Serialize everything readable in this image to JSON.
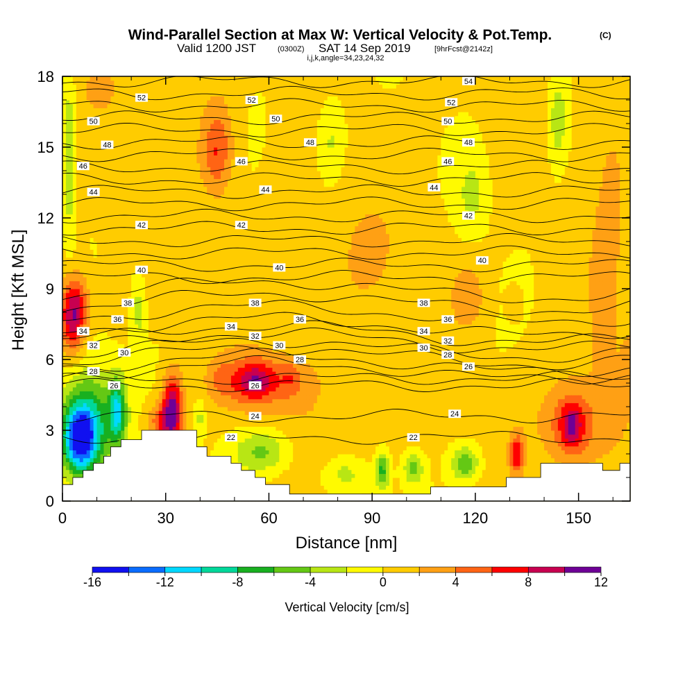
{
  "header": {
    "title": "Wind-Parallel Section at Max W: Vertical Velocity & Pot.Temp.",
    "title_mark": "(C)",
    "valid_prefix": "Valid 1200 JST",
    "valid_z": "(0300Z)",
    "valid_date": "SAT 14 Sep 2019",
    "valid_fcst": "[9hrFcst@2142z]",
    "indices": "i,j,k,angle=34,23,24,32"
  },
  "chart_data": {
    "type": "heatmap",
    "title": "Wind-Parallel Section at Max W: Vertical Velocity & Pot.Temp.",
    "xlabel": "Distance [nm]",
    "ylabel": "Height [Kft MSL]",
    "xlim": [
      0,
      165
    ],
    "ylim": [
      0,
      18
    ],
    "xticks": [
      0,
      30,
      60,
      90,
      120,
      150
    ],
    "yticks": [
      0,
      3,
      6,
      9,
      12,
      15,
      18
    ],
    "colorbar": {
      "label": "Vertical Velocity [cm/s]",
      "min": -16,
      "max": 12,
      "step": 2,
      "tick_values": [
        -16,
        -12,
        -8,
        -4,
        0,
        4,
        8,
        12
      ],
      "colors": [
        "#1010f0",
        "#0a6cff",
        "#00d8ff",
        "#00d89a",
        "#18b020",
        "#64c814",
        "#b8e614",
        "#fffa00",
        "#ffcc00",
        "#ffa014",
        "#ff6414",
        "#ff0000",
        "#c80050",
        "#6e0096"
      ]
    },
    "theta_contours": {
      "levels": [
        22,
        24,
        26,
        28,
        30,
        32,
        34,
        36,
        38,
        40,
        42,
        44,
        46,
        48,
        50,
        52,
        54
      ],
      "labels": [
        {
          "value": "22",
          "x": 49,
          "y": 2.7
        },
        {
          "value": "22",
          "x": 102,
          "y": 2.7
        },
        {
          "value": "24",
          "x": 56,
          "y": 3.6
        },
        {
          "value": "24",
          "x": 114,
          "y": 3.7
        },
        {
          "value": "26",
          "x": 15,
          "y": 4.9
        },
        {
          "value": "26",
          "x": 56,
          "y": 4.9
        },
        {
          "value": "26",
          "x": 118,
          "y": 5.7
        },
        {
          "value": "28",
          "x": 9,
          "y": 5.5
        },
        {
          "value": "28",
          "x": 69,
          "y": 6.0
        },
        {
          "value": "28",
          "x": 112,
          "y": 6.2
        },
        {
          "value": "30",
          "x": 18,
          "y": 6.3
        },
        {
          "value": "30",
          "x": 63,
          "y": 6.6
        },
        {
          "value": "30",
          "x": 105,
          "y": 6.5
        },
        {
          "value": "32",
          "x": 9,
          "y": 6.6
        },
        {
          "value": "32",
          "x": 56,
          "y": 7.0
        },
        {
          "value": "32",
          "x": 112,
          "y": 6.8
        },
        {
          "value": "34",
          "x": 6,
          "y": 7.2
        },
        {
          "value": "34",
          "x": 49,
          "y": 7.4
        },
        {
          "value": "34",
          "x": 105,
          "y": 7.2
        },
        {
          "value": "36",
          "x": 16,
          "y": 7.7
        },
        {
          "value": "36",
          "x": 69,
          "y": 7.7
        },
        {
          "value": "36",
          "x": 112,
          "y": 7.7
        },
        {
          "value": "38",
          "x": 19,
          "y": 8.4
        },
        {
          "value": "38",
          "x": 56,
          "y": 8.4
        },
        {
          "value": "38",
          "x": 105,
          "y": 8.4
        },
        {
          "value": "40",
          "x": 23,
          "y": 9.8
        },
        {
          "value": "40",
          "x": 63,
          "y": 9.9
        },
        {
          "value": "40",
          "x": 122,
          "y": 10.2
        },
        {
          "value": "42",
          "x": 23,
          "y": 11.7
        },
        {
          "value": "42",
          "x": 52,
          "y": 11.7
        },
        {
          "value": "42",
          "x": 118,
          "y": 12.1
        },
        {
          "value": "44",
          "x": 9,
          "y": 13.1
        },
        {
          "value": "44",
          "x": 59,
          "y": 13.2
        },
        {
          "value": "44",
          "x": 108,
          "y": 13.3
        },
        {
          "value": "46",
          "x": 6,
          "y": 14.2
        },
        {
          "value": "46",
          "x": 52,
          "y": 14.4
        },
        {
          "value": "46",
          "x": 112,
          "y": 14.4
        },
        {
          "value": "48",
          "x": 13,
          "y": 15.1
        },
        {
          "value": "48",
          "x": 72,
          "y": 15.2
        },
        {
          "value": "48",
          "x": 118,
          "y": 15.2
        },
        {
          "value": "50",
          "x": 9,
          "y": 16.1
        },
        {
          "value": "50",
          "x": 62,
          "y": 16.2
        },
        {
          "value": "50",
          "x": 112,
          "y": 16.1
        },
        {
          "value": "52",
          "x": 23,
          "y": 17.1
        },
        {
          "value": "52",
          "x": 55,
          "y": 17.0
        },
        {
          "value": "52",
          "x": 113,
          "y": 16.9
        },
        {
          "value": "54",
          "x": 118,
          "y": 17.8
        }
      ]
    },
    "terrain_top_kft": [
      [
        0,
        0.7
      ],
      [
        3,
        0.7
      ],
      [
        3,
        1.0
      ],
      [
        6,
        1.0
      ],
      [
        6,
        1.3
      ],
      [
        9,
        1.3
      ],
      [
        9,
        1.6
      ],
      [
        12,
        1.6
      ],
      [
        12,
        1.9
      ],
      [
        14,
        1.9
      ],
      [
        14,
        2.3
      ],
      [
        17,
        2.3
      ],
      [
        17,
        2.6
      ],
      [
        23,
        2.6
      ],
      [
        23,
        3.0
      ],
      [
        39,
        3.0
      ],
      [
        39,
        2.3
      ],
      [
        42,
        2.3
      ],
      [
        42,
        1.9
      ],
      [
        49,
        1.9
      ],
      [
        49,
        1.6
      ],
      [
        52,
        1.6
      ],
      [
        52,
        1.3
      ],
      [
        56,
        1.3
      ],
      [
        56,
        1.0
      ],
      [
        59,
        1.0
      ],
      [
        59,
        0.7
      ],
      [
        66,
        0.7
      ],
      [
        66,
        0.3
      ],
      [
        107,
        0.3
      ],
      [
        107,
        0.6
      ],
      [
        129,
        0.6
      ],
      [
        129,
        1.0
      ],
      [
        139,
        1.0
      ],
      [
        139,
        1.6
      ],
      [
        157,
        1.6
      ],
      [
        157,
        1.3
      ],
      [
        162,
        1.3
      ],
      [
        162,
        1.6
      ],
      [
        165,
        1.6
      ]
    ],
    "w_features": [
      {
        "x": 3,
        "y": 7.6,
        "sx": 3.5,
        "sy": 1.4,
        "w": 8
      },
      {
        "x": 4,
        "y": 8.6,
        "sx": 4,
        "sy": 1.2,
        "w": 4
      },
      {
        "x": 5,
        "y": 2.6,
        "sx": 5,
        "sy": 1.4,
        "w": -13
      },
      {
        "x": 8,
        "y": 3.4,
        "sx": 8,
        "sy": 2.2,
        "w": -8
      },
      {
        "x": 16,
        "y": 3.8,
        "sx": 2.5,
        "sy": 1.4,
        "w": -9
      },
      {
        "x": 32,
        "y": 4.0,
        "sx": 2.8,
        "sy": 1.5,
        "w": 10
      },
      {
        "x": 29,
        "y": 3.4,
        "sx": 4,
        "sy": 0.8,
        "w": 6
      },
      {
        "x": 56,
        "y": 5.1,
        "sx": 12,
        "sy": 1.2,
        "w": 6
      },
      {
        "x": 56,
        "y": 5.1,
        "sx": 5,
        "sy": 0.7,
        "w": 4
      },
      {
        "x": 46,
        "y": 5.2,
        "sx": 2.5,
        "sy": 0.6,
        "w": 2
      },
      {
        "x": 66,
        "y": 5.3,
        "sx": 2.5,
        "sy": 0.6,
        "w": 2
      },
      {
        "x": 45,
        "y": 14.8,
        "sx": 4,
        "sy": 1.6,
        "w": 4
      },
      {
        "x": 45,
        "y": 15.5,
        "sx": 6,
        "sy": 2.8,
        "w": 2
      },
      {
        "x": 148,
        "y": 3.2,
        "sx": 5,
        "sy": 1.2,
        "w": 6
      },
      {
        "x": 148,
        "y": 3.2,
        "sx": 2,
        "sy": 0.7,
        "w": 3
      },
      {
        "x": 132,
        "y": 2.0,
        "sx": 2,
        "sy": 0.8,
        "w": 7
      },
      {
        "x": 150,
        "y": 3.4,
        "sx": 15,
        "sy": 2.4,
        "w": 3
      },
      {
        "x": 118,
        "y": 8.7,
        "sx": 5,
        "sy": 1.4,
        "w": 3
      },
      {
        "x": 131,
        "y": 8.4,
        "sx": 2,
        "sy": 0.6,
        "w": 2
      },
      {
        "x": 157,
        "y": 8.3,
        "sx": 4,
        "sy": 2.8,
        "w": 2.5
      },
      {
        "x": 165,
        "y": 6.0,
        "sx": 3,
        "sy": 1.2,
        "w": 2
      },
      {
        "x": 2,
        "y": 14.5,
        "sx": 1.5,
        "sy": 3.5,
        "w": -4
      },
      {
        "x": 78,
        "y": 15.2,
        "sx": 4,
        "sy": 1.8,
        "w": -3
      },
      {
        "x": 144,
        "y": 16.2,
        "sx": 2.5,
        "sy": 1.8,
        "w": -4
      },
      {
        "x": 119,
        "y": 13.0,
        "sx": 4,
        "sy": 1.6,
        "w": -3
      },
      {
        "x": 22,
        "y": 8.2,
        "sx": 2,
        "sy": 1.8,
        "w": -3
      },
      {
        "x": 93,
        "y": 1.3,
        "sx": 2,
        "sy": 0.8,
        "w": -7
      },
      {
        "x": 102,
        "y": 1.4,
        "sx": 3,
        "sy": 0.7,
        "w": -5
      },
      {
        "x": 117,
        "y": 1.6,
        "sx": 4,
        "sy": 0.7,
        "w": -6
      },
      {
        "x": 58,
        "y": 2.1,
        "sx": 8,
        "sy": 0.9,
        "w": -5
      },
      {
        "x": 82,
        "y": 1.2,
        "sx": 6,
        "sy": 0.8,
        "w": -3
      },
      {
        "x": 40,
        "y": 3.6,
        "sx": 1.5,
        "sy": 0.8,
        "w": -3
      },
      {
        "x": 85,
        "y": 10.2,
        "sx": 20,
        "sy": 4,
        "w": 1.5
      },
      {
        "x": 70,
        "y": 4.8,
        "sx": 6,
        "sy": 1.0,
        "w": 1.5
      },
      {
        "x": 82,
        "y": 2.6,
        "sx": 15,
        "sy": 1.4,
        "w": 1.4
      },
      {
        "x": 22,
        "y": 13.5,
        "sx": 10,
        "sy": 4,
        "w": 1.5
      },
      {
        "x": 160,
        "y": 13.5,
        "sx": 6,
        "sy": 5,
        "w": 1.8
      },
      {
        "x": 10,
        "y": 17.5,
        "sx": 5,
        "sy": 1,
        "w": 2
      }
    ]
  }
}
